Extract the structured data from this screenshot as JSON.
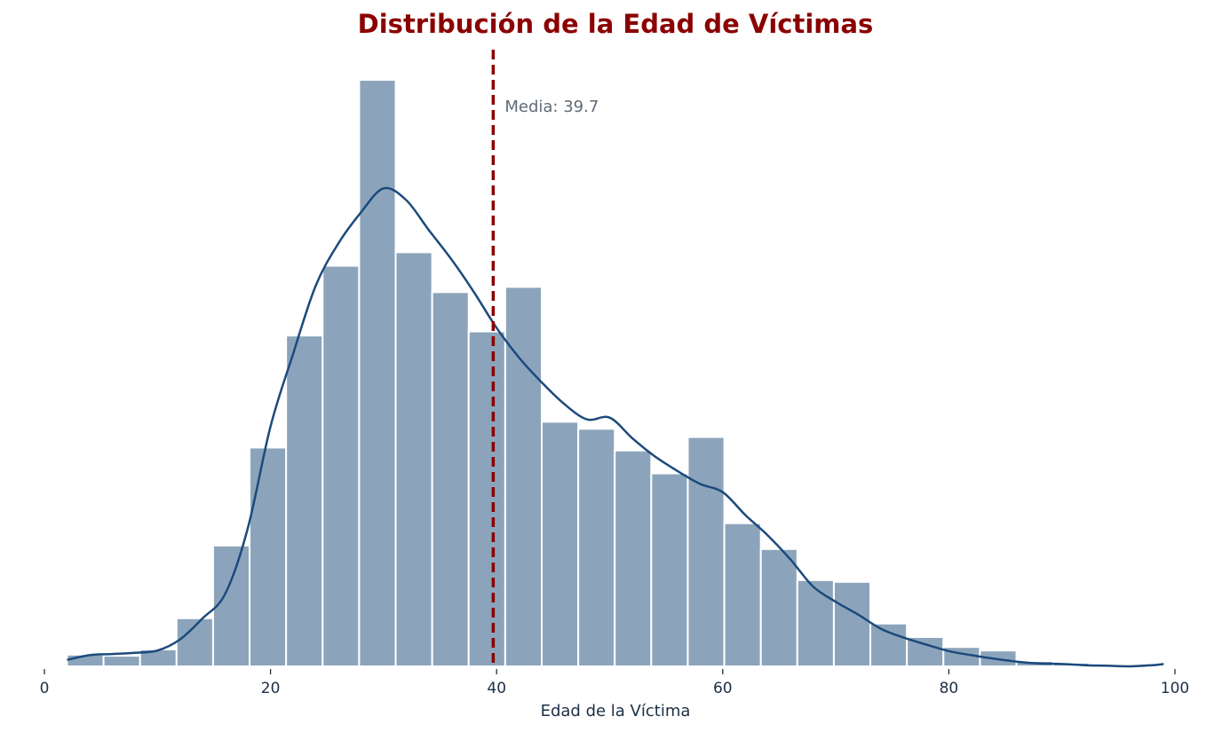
{
  "chart_data": {
    "type": "bar",
    "title": "Distribución de la Edad de Víctimas",
    "xlabel": "Edad de la Víctima",
    "ylabel": "",
    "xlim": [
      0,
      100
    ],
    "ylim": [
      0,
      1
    ],
    "x_ticks": [
      "0",
      "20",
      "40",
      "60",
      "80",
      "100"
    ],
    "grid": false,
    "bin_width": 3.23,
    "bin_start": 2,
    "bins": [
      {
        "start": 2.0,
        "value": 0.02
      },
      {
        "start": 5.23,
        "value": 0.018
      },
      {
        "start": 8.46,
        "value": 0.029
      },
      {
        "start": 11.69,
        "value": 0.082
      },
      {
        "start": 14.92,
        "value": 0.206
      },
      {
        "start": 18.15,
        "value": 0.373
      },
      {
        "start": 21.38,
        "value": 0.564
      },
      {
        "start": 24.61,
        "value": 0.683
      },
      {
        "start": 27.84,
        "value": 1.0
      },
      {
        "start": 31.07,
        "value": 0.706
      },
      {
        "start": 34.3,
        "value": 0.638
      },
      {
        "start": 37.53,
        "value": 0.571
      },
      {
        "start": 40.76,
        "value": 0.647
      },
      {
        "start": 43.99,
        "value": 0.417
      },
      {
        "start": 47.22,
        "value": 0.405
      },
      {
        "start": 50.45,
        "value": 0.368
      },
      {
        "start": 53.68,
        "value": 0.329
      },
      {
        "start": 56.91,
        "value": 0.391
      },
      {
        "start": 60.14,
        "value": 0.244
      },
      {
        "start": 63.37,
        "value": 0.2
      },
      {
        "start": 66.6,
        "value": 0.147
      },
      {
        "start": 69.83,
        "value": 0.144
      },
      {
        "start": 73.06,
        "value": 0.073
      },
      {
        "start": 76.29,
        "value": 0.05
      },
      {
        "start": 79.52,
        "value": 0.033
      },
      {
        "start": 82.75,
        "value": 0.027
      },
      {
        "start": 85.98,
        "value": 0.009
      },
      {
        "start": 89.21,
        "value": 0.006
      },
      {
        "start": 92.44,
        "value": 0.002
      },
      {
        "start": 95.67,
        "value": 0.0
      }
    ],
    "kde": [
      [
        2,
        0.011
      ],
      [
        4,
        0.019
      ],
      [
        6,
        0.021
      ],
      [
        8,
        0.023
      ],
      [
        10,
        0.027
      ],
      [
        12,
        0.046
      ],
      [
        14,
        0.082
      ],
      [
        16,
        0.124
      ],
      [
        18,
        0.236
      ],
      [
        20,
        0.409
      ],
      [
        22,
        0.533
      ],
      [
        24,
        0.649
      ],
      [
        26,
        0.721
      ],
      [
        28,
        0.774
      ],
      [
        30,
        0.815
      ],
      [
        32,
        0.795
      ],
      [
        34,
        0.744
      ],
      [
        36,
        0.694
      ],
      [
        38,
        0.638
      ],
      [
        40,
        0.577
      ],
      [
        42,
        0.526
      ],
      [
        44,
        0.484
      ],
      [
        46,
        0.447
      ],
      [
        48,
        0.421
      ],
      [
        50,
        0.424
      ],
      [
        52,
        0.389
      ],
      [
        54,
        0.358
      ],
      [
        56,
        0.333
      ],
      [
        58,
        0.311
      ],
      [
        60,
        0.297
      ],
      [
        62,
        0.258
      ],
      [
        64,
        0.223
      ],
      [
        66,
        0.182
      ],
      [
        68,
        0.136
      ],
      [
        70,
        0.11
      ],
      [
        72,
        0.088
      ],
      [
        74,
        0.064
      ],
      [
        76,
        0.049
      ],
      [
        78,
        0.037
      ],
      [
        80,
        0.026
      ],
      [
        82,
        0.019
      ],
      [
        84,
        0.013
      ],
      [
        86,
        0.008
      ],
      [
        88,
        0.005
      ],
      [
        90,
        0.004
      ],
      [
        92,
        0.002
      ],
      [
        94,
        0.001
      ],
      [
        96,
        0.0
      ],
      [
        98,
        0.002
      ],
      [
        99,
        0.004
      ]
    ],
    "mean": 39.7,
    "mean_label": "Media: 39.7",
    "colors": {
      "bar": "#8ca4bb",
      "bar_edge": "#ffffff",
      "kde": "#1c4a7c",
      "mean_line": "#8b0000",
      "title": "#8b0000",
      "text": "#1c2f45",
      "annotation": "#5f6b76"
    }
  }
}
